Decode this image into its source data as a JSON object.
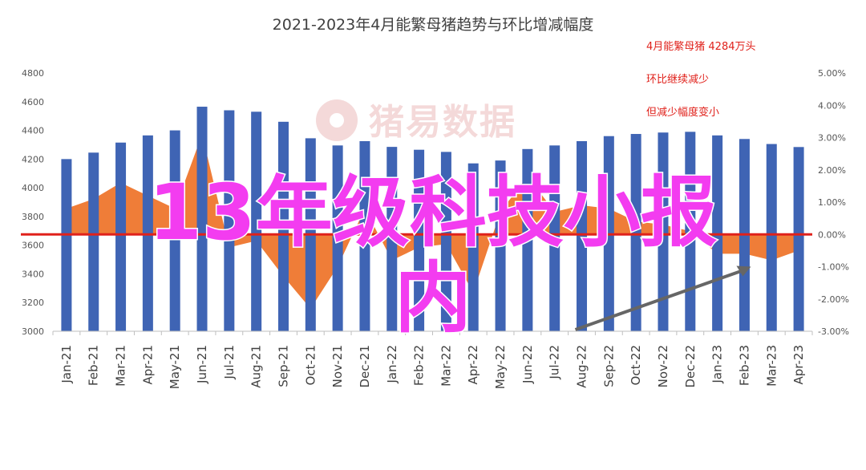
{
  "chart_data": {
    "type": "bar",
    "title": "2021-2023年4月能繁母猪趋势与环比增减幅度",
    "categories": [
      "Jan-21",
      "Feb-21",
      "Mar-21",
      "Apr-21",
      "May-21",
      "Jun-21",
      "Jul-21",
      "Aug-21",
      "Sep-21",
      "Oct-21",
      "Nov-21",
      "Dec-21",
      "Jan-22",
      "Feb-22",
      "Mar-22",
      "Apr-22",
      "May-22",
      "Jun-22",
      "Jul-22",
      "Aug-22",
      "Sep-22",
      "Oct-22",
      "Nov-22",
      "Dec-22",
      "Jan-23",
      "Feb-23",
      "Mar-23",
      "Apr-23"
    ],
    "series": [
      {
        "type": "bar",
        "axis": "left",
        "color": "#3f64b4",
        "values": [
          4200,
          4245,
          4315,
          4365,
          4400,
          4565,
          4540,
          4530,
          4460,
          4345,
          4295,
          4325,
          4285,
          4265,
          4250,
          4170,
          4190,
          4270,
          4295,
          4325,
          4360,
          4375,
          4385,
          4390,
          4365,
          4340,
          4305,
          4284
        ]
      },
      {
        "type": "area",
        "axis": "right",
        "color": "#ef7d38",
        "values": [
          0.8,
          1.1,
          1.6,
          1.2,
          0.8,
          3.1,
          -0.4,
          -0.2,
          -1.3,
          -2.3,
          -1.0,
          0.8,
          -0.8,
          -0.4,
          -0.3,
          -1.8,
          0.7,
          1.8,
          0.7,
          0.9,
          0.8,
          0.4,
          0.3,
          0.1,
          -0.6,
          -0.6,
          -0.8,
          -0.5
        ]
      }
    ],
    "y_left": {
      "ticks": [
        "3000",
        "3200",
        "3400",
        "3600",
        "3800",
        "4000",
        "4200",
        "4400",
        "4600",
        "4800"
      ],
      "range": [
        3000,
        4800
      ]
    },
    "y_right": {
      "ticks": [
        "-3.00%",
        "-2.00%",
        "-1.00%",
        "0.00%",
        "1.00%",
        "2.00%",
        "3.00%",
        "4.00%",
        "5.00%"
      ],
      "range": [
        -3,
        5
      ]
    },
    "reference_line": {
      "axis": "right",
      "value": 0,
      "color": "#e0211b"
    },
    "grid": false,
    "annotations": [
      "4月能繁母猪 4284万头",
      "环比继续减少",
      "但减少幅度变小"
    ],
    "arrow": {
      "from_category": "Aug-22",
      "to_category": "Feb-23",
      "color": "#666666"
    }
  },
  "watermark": "猪易数据",
  "overlay": {
    "line1": "13年级科技小报",
    "line2": "内"
  },
  "colors": {
    "bar": "#3f64b4",
    "area": "#ef7d38",
    "zero_line": "#e0211b",
    "annotation": "#e0211b",
    "overlay": "#f33cf0"
  }
}
